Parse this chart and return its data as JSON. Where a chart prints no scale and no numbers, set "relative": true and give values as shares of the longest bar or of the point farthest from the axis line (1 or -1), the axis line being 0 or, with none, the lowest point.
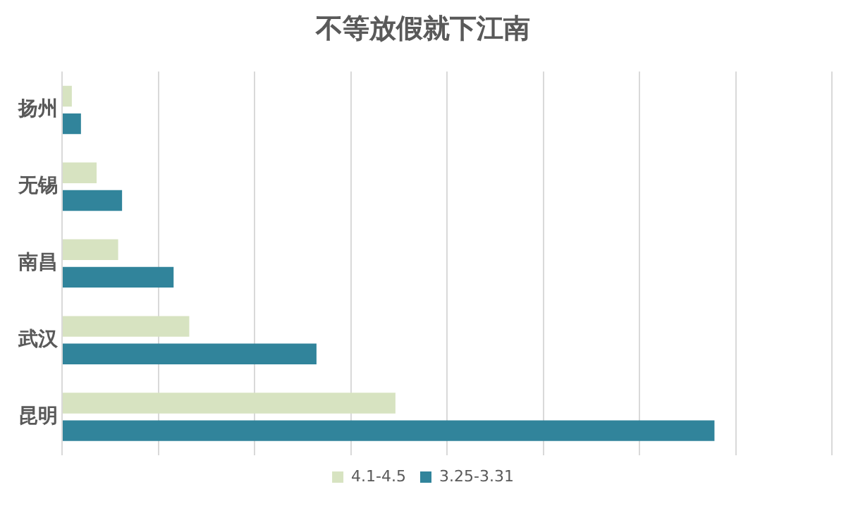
{
  "chart_data": {
    "type": "bar",
    "title": "不等放假就下江南",
    "orientation": "horizontal",
    "relative": true,
    "categories": [
      "扬州",
      "无锡",
      "南昌",
      "武汉",
      "昆明"
    ],
    "series": [
      {
        "name": "4.1-4.5",
        "color": "#d7e3c1",
        "values": [
          0.015,
          0.053,
          0.086,
          0.195,
          0.511
        ]
      },
      {
        "name": "3.25-3.31",
        "color": "#31849b",
        "values": [
          0.029,
          0.092,
          0.171,
          0.39,
          1
        ]
      }
    ],
    "grid": "x",
    "legend": "bottom"
  }
}
